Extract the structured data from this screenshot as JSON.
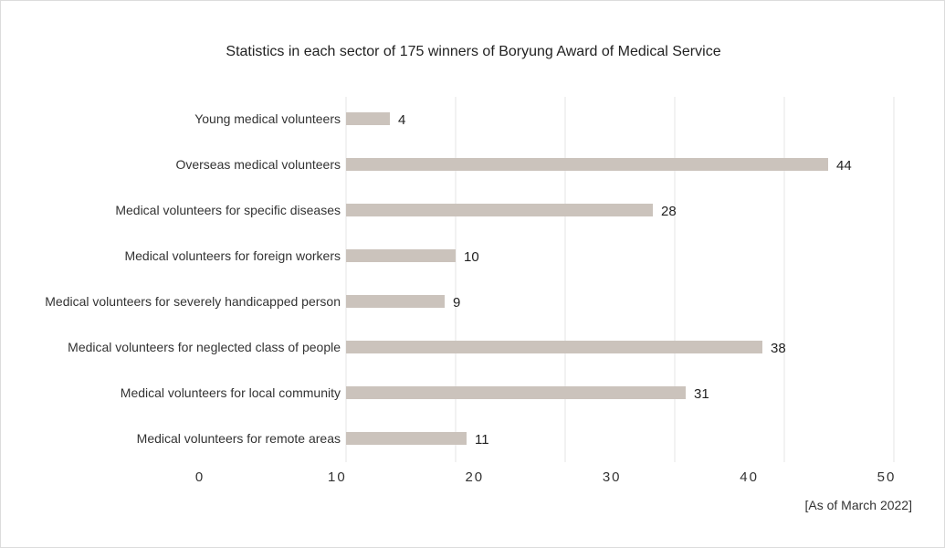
{
  "chart_data": {
    "type": "bar",
    "orientation": "horizontal",
    "title": "Statistics in each sector of 175 winners of Boryung Award of Medical Service",
    "categories": [
      "Young medical volunteers",
      "Overseas medical volunteers",
      "Medical volunteers for specific diseases",
      "Medical volunteers for foreign workers",
      "Medical volunteers for severely handicapped person",
      "Medical volunteers for neglected class of people",
      "Medical volunteers for local community",
      "Medical volunteers for remote areas"
    ],
    "values": [
      4,
      44,
      28,
      10,
      9,
      38,
      31,
      11
    ],
    "x_ticks": [
      "0",
      "10",
      "20",
      "30",
      "40",
      "50"
    ],
    "xlim": [
      0,
      50
    ],
    "grid": true,
    "bar_color": "#cbc3bc",
    "note": "[As of March 2022]"
  }
}
